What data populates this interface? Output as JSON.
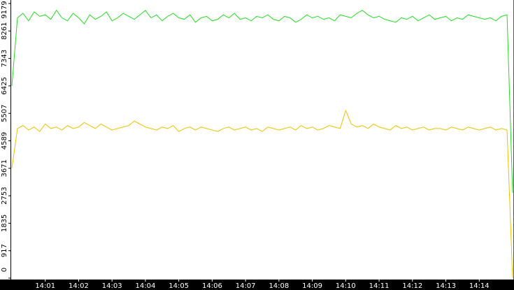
{
  "chart_data": {
    "type": "line",
    "categories": [
      null,
      null,
      null,
      null,
      null,
      null,
      "14:01",
      null,
      null,
      null,
      null,
      null,
      "14:02",
      null,
      null,
      null,
      null,
      null,
      "14:03",
      null,
      null,
      null,
      null,
      null,
      "14:04",
      null,
      null,
      null,
      null,
      null,
      "14:05",
      null,
      null,
      null,
      null,
      null,
      "14:06",
      null,
      null,
      null,
      null,
      null,
      "14:07",
      null,
      null,
      null,
      null,
      null,
      "14:08",
      null,
      null,
      null,
      null,
      null,
      "14:09",
      null,
      null,
      null,
      null,
      null,
      "14:10",
      null,
      null,
      null,
      null,
      null,
      "14:11",
      null,
      null,
      null,
      null,
      null,
      "14:12",
      null,
      null,
      null,
      null,
      null,
      "14:13",
      null,
      null,
      null,
      null,
      null,
      "14:14",
      null,
      null,
      null,
      null,
      null,
      null
    ],
    "series": [
      {
        "color": "#22dd22",
        "values": [
          6425,
          8700,
          8850,
          8600,
          8900,
          8750,
          8800,
          8650,
          8950,
          8700,
          8600,
          8850,
          8700,
          8500,
          8800,
          8650,
          8750,
          8900,
          8600,
          8700,
          8850,
          8750,
          8650,
          8800,
          8950,
          8700,
          8800,
          8600,
          8750,
          8850,
          8700,
          8650,
          8800,
          8550,
          8700,
          8750,
          8600,
          8650,
          8800,
          8700,
          8850,
          8650,
          8700,
          8600,
          8750,
          8700,
          8800,
          8650,
          8600,
          8750,
          8700,
          8550,
          8650,
          8800,
          8700,
          8750,
          8650,
          8700,
          8600,
          8800,
          8750,
          8700,
          8850,
          8950,
          8800,
          8700,
          8750,
          8650,
          8600,
          8550,
          8700,
          8650,
          8750,
          8600,
          8700,
          8800,
          8650,
          8700,
          8750,
          8600,
          8700,
          8650,
          8800,
          8750,
          8700,
          8650,
          8700,
          8600,
          8750,
          8800,
          2850
        ]
      },
      {
        "color": "#f0c000",
        "values": [
          3671,
          5000,
          5100,
          4950,
          5050,
          4900,
          5150,
          5000,
          5050,
          4950,
          5100,
          5000,
          5050,
          5200,
          5100,
          5000,
          5150,
          5050,
          4950,
          5000,
          5050,
          5100,
          5250,
          5150,
          5050,
          5000,
          4950,
          5050,
          5000,
          5100,
          4900,
          5000,
          5050,
          4950,
          5050,
          5000,
          4950,
          4900,
          5000,
          5050,
          4950,
          5000,
          5050,
          4950,
          5000,
          4900,
          5050,
          5000,
          4950,
          5000,
          5050,
          4950,
          5100,
          5000,
          5050,
          4950,
          5000,
          5100,
          5050,
          5000,
          5600,
          5150,
          5050,
          5100,
          5000,
          5150,
          5050,
          5000,
          4950,
          5100,
          5000,
          5050,
          4950,
          5000,
          5050,
          4950,
          5000,
          5000,
          4950,
          5050,
          5000,
          4950,
          5050,
          5000,
          4950,
          5000,
          5050,
          4950,
          5000,
          4950,
          0
        ]
      }
    ],
    "ylim": [
      0,
      9179
    ],
    "yticks": [
      0,
      917,
      1835,
      2753,
      3671,
      4589,
      5507,
      6425,
      7343,
      8261,
      9179
    ],
    "grid": false
  }
}
